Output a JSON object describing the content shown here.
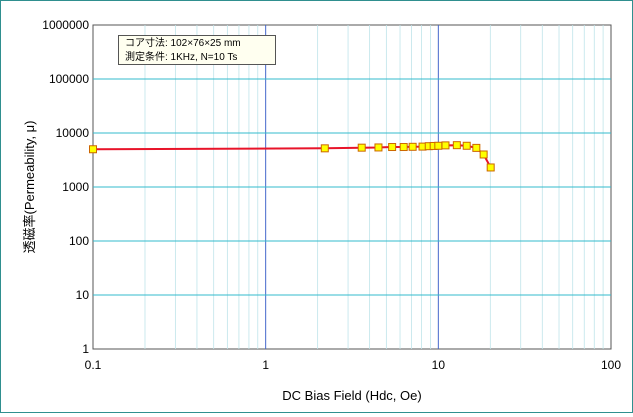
{
  "chart_data": {
    "type": "line",
    "xlabel": "DC Bias Field  (Hdc, Oe)",
    "ylabel": "透磁率(Permeability, μ)",
    "x_scale": "log",
    "y_scale": "log",
    "xlim": [
      0.1,
      100
    ],
    "ylim": [
      1,
      1000000
    ],
    "x_ticks": [
      "0.1",
      "1",
      "10",
      "100"
    ],
    "y_ticks": [
      "1000000",
      "100000",
      "10000",
      "1000",
      "100",
      "10",
      "1"
    ],
    "grid": true,
    "annotation": [
      "コア寸法:  102×76×25 mm",
      "測定条件:  1KHz,   N=10 Ts"
    ],
    "series": [
      {
        "color": "#e8142a",
        "marker_color": "#ffff00",
        "marker_edge": "#cc6600",
        "x": [
          0.1,
          2.2,
          3.6,
          4.5,
          5.4,
          6.3,
          7.1,
          8.1,
          8.8,
          9.4,
          10.0,
          11.0,
          12.8,
          14.6,
          16.6,
          18.3,
          20.1
        ],
        "y": [
          5000,
          5200,
          5350,
          5400,
          5500,
          5500,
          5550,
          5600,
          5700,
          5750,
          5800,
          5900,
          5950,
          5800,
          5300,
          4000,
          2300
        ]
      }
    ]
  }
}
